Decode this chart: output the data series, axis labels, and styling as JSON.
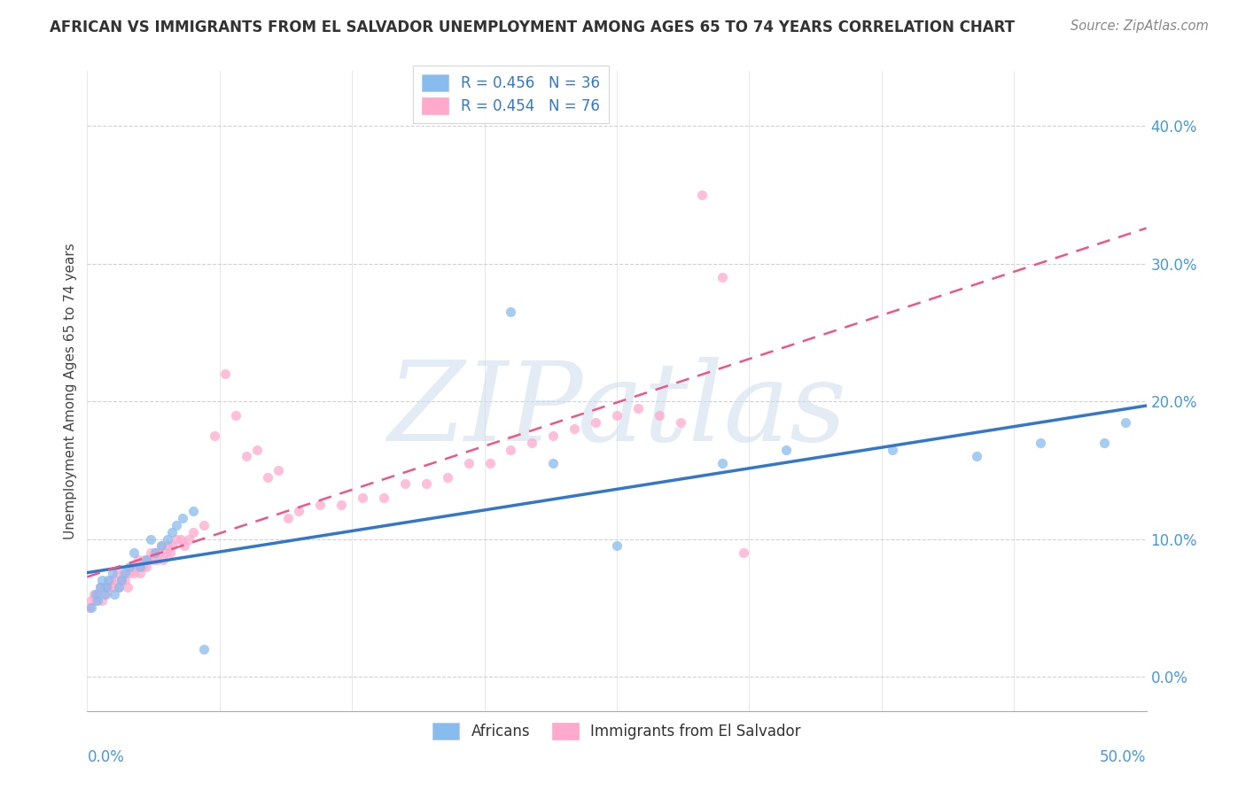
{
  "title": "AFRICAN VS IMMIGRANTS FROM EL SALVADOR UNEMPLOYMENT AMONG AGES 65 TO 74 YEARS CORRELATION CHART",
  "source": "Source: ZipAtlas.com",
  "ylabel": "Unemployment Among Ages 65 to 74 years",
  "xlim": [
    0.0,
    0.5
  ],
  "ylim": [
    -0.025,
    0.44
  ],
  "yticks": [
    0.0,
    0.1,
    0.2,
    0.3,
    0.4
  ],
  "ytick_labels": [
    "0.0%",
    "10.0%",
    "20.0%",
    "30.0%",
    "40.0%"
  ],
  "xtick_left": "0.0%",
  "xtick_right": "50.0%",
  "blue_color": "#88bbee",
  "pink_color": "#ffaacc",
  "blue_line_color": "#3377cc",
  "pink_line_color": "#ee5588",
  "legend_r_blue": "R = 0.456",
  "legend_n_blue": "N = 36",
  "legend_r_pink": "R = 0.454",
  "legend_n_pink": "N = 76",
  "watermark": "ZIPatlas",
  "blue_scatter_x": [
    0.002,
    0.004,
    0.005,
    0.006,
    0.007,
    0.008,
    0.009,
    0.01,
    0.012,
    0.013,
    0.015,
    0.016,
    0.018,
    0.02,
    0.022,
    0.025,
    0.028,
    0.03,
    0.032,
    0.035,
    0.038,
    0.04,
    0.042,
    0.045,
    0.05,
    0.055,
    0.2,
    0.22,
    0.25,
    0.3,
    0.33,
    0.38,
    0.42,
    0.45,
    0.48,
    0.49
  ],
  "blue_scatter_y": [
    0.05,
    0.06,
    0.055,
    0.065,
    0.07,
    0.06,
    0.065,
    0.07,
    0.075,
    0.06,
    0.065,
    0.07,
    0.075,
    0.08,
    0.09,
    0.08,
    0.085,
    0.1,
    0.09,
    0.095,
    0.1,
    0.105,
    0.11,
    0.115,
    0.12,
    0.02,
    0.265,
    0.155,
    0.095,
    0.155,
    0.165,
    0.165,
    0.16,
    0.17,
    0.17,
    0.185
  ],
  "pink_scatter_x": [
    0.001,
    0.002,
    0.003,
    0.004,
    0.005,
    0.006,
    0.007,
    0.008,
    0.009,
    0.01,
    0.011,
    0.012,
    0.013,
    0.014,
    0.015,
    0.016,
    0.017,
    0.018,
    0.019,
    0.02,
    0.021,
    0.022,
    0.023,
    0.024,
    0.025,
    0.026,
    0.027,
    0.028,
    0.029,
    0.03,
    0.031,
    0.032,
    0.033,
    0.034,
    0.035,
    0.036,
    0.037,
    0.038,
    0.039,
    0.04,
    0.042,
    0.044,
    0.046,
    0.048,
    0.05,
    0.055,
    0.06,
    0.065,
    0.07,
    0.075,
    0.08,
    0.085,
    0.09,
    0.095,
    0.1,
    0.11,
    0.12,
    0.13,
    0.14,
    0.15,
    0.16,
    0.17,
    0.18,
    0.19,
    0.2,
    0.21,
    0.22,
    0.23,
    0.24,
    0.25,
    0.26,
    0.27,
    0.28,
    0.29,
    0.3,
    0.31
  ],
  "pink_scatter_y": [
    0.05,
    0.055,
    0.06,
    0.055,
    0.06,
    0.065,
    0.055,
    0.065,
    0.06,
    0.065,
    0.07,
    0.065,
    0.07,
    0.075,
    0.065,
    0.07,
    0.075,
    0.07,
    0.065,
    0.075,
    0.08,
    0.075,
    0.08,
    0.085,
    0.075,
    0.08,
    0.085,
    0.08,
    0.085,
    0.09,
    0.085,
    0.09,
    0.085,
    0.09,
    0.095,
    0.085,
    0.09,
    0.095,
    0.09,
    0.095,
    0.1,
    0.1,
    0.095,
    0.1,
    0.105,
    0.11,
    0.175,
    0.22,
    0.19,
    0.16,
    0.165,
    0.145,
    0.15,
    0.115,
    0.12,
    0.125,
    0.125,
    0.13,
    0.13,
    0.14,
    0.14,
    0.145,
    0.155,
    0.155,
    0.165,
    0.17,
    0.175,
    0.18,
    0.185,
    0.19,
    0.195,
    0.19,
    0.185,
    0.35,
    0.29,
    0.09
  ]
}
